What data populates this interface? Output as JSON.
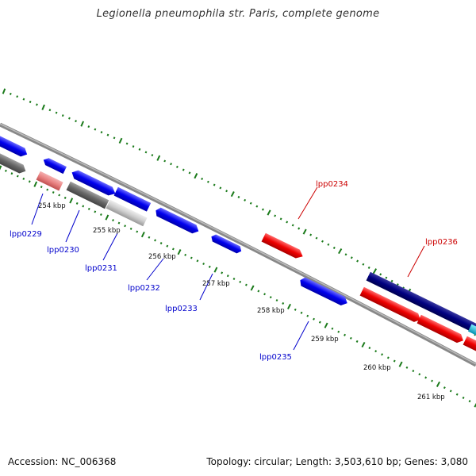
{
  "title": "Legionella pneumophila str. Paris, complete genome",
  "footer": {
    "accession": "Accession: NC_006368",
    "summary": "Topology: circular; Length: 3,503,610 bp; Genes: 3,080"
  },
  "colors": {
    "forward_gene": "#0000ee",
    "reverse_gene": "#ee0000",
    "selected_forward": "#000080",
    "grey_gene": "#666666",
    "light_grey_gene": "#cccccc",
    "pink_gene": "#e88080",
    "cyan_gene": "#00c8e8",
    "tick_green": "#1a7a1a",
    "label_blue": "#0000cc",
    "label_red": "#cc0000",
    "backbone": "#888888"
  },
  "ticks": [
    {
      "label": "254 kbp",
      "position_kbp": 254
    },
    {
      "label": "255 kbp",
      "position_kbp": 255
    },
    {
      "label": "256 kbp",
      "position_kbp": 256
    },
    {
      "label": "257 kbp",
      "position_kbp": 257
    },
    {
      "label": "258 kbp",
      "position_kbp": 258
    },
    {
      "label": "259 kbp",
      "position_kbp": 259
    },
    {
      "label": "260 kbp",
      "position_kbp": 260
    },
    {
      "label": "261 kbp",
      "position_kbp": 261
    }
  ],
  "gene_labels": [
    {
      "label": "lpp0229",
      "strand": "reverse_side_label",
      "color": "blue"
    },
    {
      "label": "lpp0230",
      "strand": "reverse_side_label",
      "color": "blue"
    },
    {
      "label": "lpp0231",
      "strand": "reverse_side_label",
      "color": "blue"
    },
    {
      "label": "lpp0232",
      "strand": "reverse_side_label",
      "color": "blue"
    },
    {
      "label": "lpp0233",
      "strand": "reverse_side_label",
      "color": "blue"
    },
    {
      "label": "lpp0235",
      "strand": "reverse_side_label",
      "color": "blue"
    },
    {
      "label": "lpp0234",
      "strand": "forward_side_label",
      "color": "red"
    },
    {
      "label": "lpp0236",
      "strand": "forward_side_label",
      "color": "red"
    }
  ]
}
